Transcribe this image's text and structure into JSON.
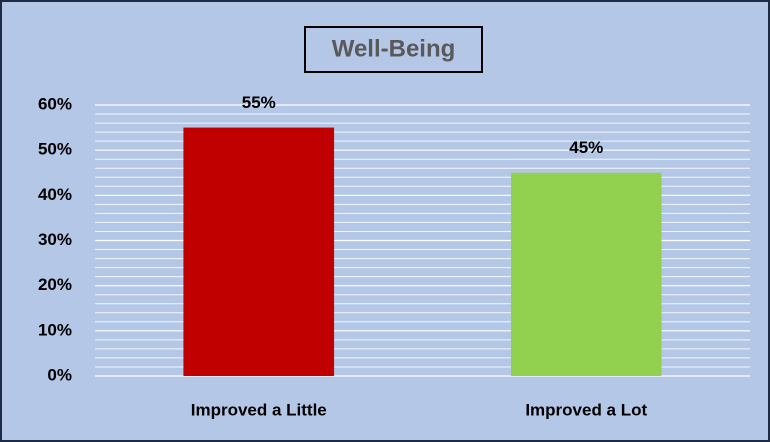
{
  "chart_data": {
    "type": "bar",
    "title": "Well-Being",
    "categories": [
      "Improved a Little",
      "Improved a Lot"
    ],
    "values": [
      55,
      45
    ],
    "value_labels": [
      "55%",
      "45%"
    ],
    "colors": [
      "#c00000",
      "#92d050"
    ],
    "ylim": [
      0,
      60
    ],
    "yticks": [
      {
        "value": 0,
        "label": "0%"
      },
      {
        "value": 10,
        "label": "10%"
      },
      {
        "value": 20,
        "label": "20%"
      },
      {
        "value": 30,
        "label": "30%"
      },
      {
        "value": 40,
        "label": "40%"
      },
      {
        "value": 50,
        "label": "50%"
      },
      {
        "value": 60,
        "label": "60%"
      }
    ],
    "yminorticks": [
      2,
      4,
      6,
      8,
      12,
      14,
      16,
      18,
      22,
      24,
      26,
      28,
      32,
      34,
      36,
      38,
      42,
      44,
      46,
      48,
      52,
      54,
      56,
      58
    ],
    "grid": true
  }
}
